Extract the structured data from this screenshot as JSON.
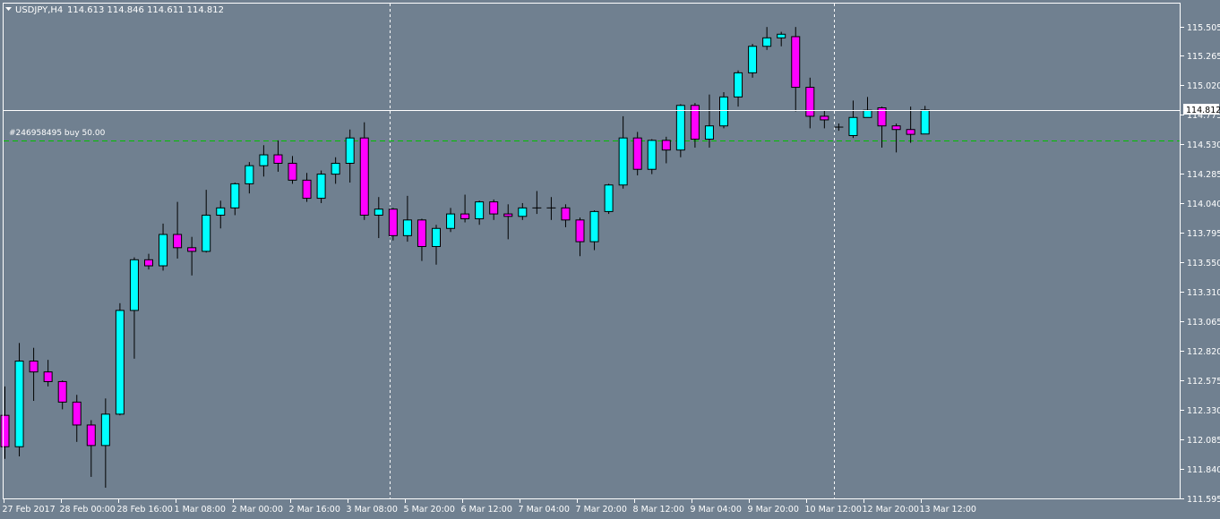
{
  "window": {
    "symbol": "USDJPY,H4",
    "ohlc_line": "114.613 114.846 114.611 114.812"
  },
  "price_axis": {
    "labels": [
      "115.505",
      "115.265",
      "115.020",
      "114.775",
      "114.530",
      "114.285",
      "114.040",
      "113.795",
      "113.550",
      "113.310",
      "113.065",
      "112.820",
      "112.575",
      "112.330",
      "112.085",
      "111.840",
      "111.595"
    ],
    "current_price_label": "114.812"
  },
  "time_axis": {
    "labels": [
      "27 Feb 2017",
      "28 Feb 00:00",
      "28 Feb 16:00",
      "1 Mar 08:00",
      "2 Mar 00:00",
      "2 Mar 16:00",
      "3 Mar 08:00",
      "5 Mar 20:00",
      "6 Mar 12:00",
      "7 Mar 04:00",
      "7 Mar 20:00",
      "8 Mar 12:00",
      "9 Mar 04:00",
      "9 Mar 20:00",
      "10 Mar 12:00",
      "12 Mar 20:00",
      "13 Mar 12:00"
    ]
  },
  "order": {
    "label": "#246958495 buy 50.00",
    "price": 114.56
  },
  "colors": {
    "background": "#708090",
    "bull": "#00FFFF",
    "bear": "#FF00FF",
    "wick": "#000000",
    "bid_line": "#FFFFFF",
    "order_line": "#00C000",
    "separator": "#FFFFFF",
    "axis_text": "#FFFFFF"
  },
  "chart_data": {
    "type": "candlestick",
    "symbol": "USDJPY",
    "timeframe": "H4",
    "ylim": [
      111.58,
      115.62
    ],
    "bid": 114.812,
    "period_separators": [
      "3 Mar 20:00",
      "10 Mar 12:00"
    ],
    "candles": [
      {
        "o": 112.28,
        "h": 112.52,
        "l": 111.92,
        "c": 112.02
      },
      {
        "o": 112.02,
        "h": 112.88,
        "l": 111.94,
        "c": 112.73
      },
      {
        "o": 112.73,
        "h": 112.84,
        "l": 112.4,
        "c": 112.64
      },
      {
        "o": 112.64,
        "h": 112.74,
        "l": 112.52,
        "c": 112.56
      },
      {
        "o": 112.56,
        "h": 112.57,
        "l": 112.33,
        "c": 112.39
      },
      {
        "o": 112.39,
        "h": 112.45,
        "l": 112.06,
        "c": 112.2
      },
      {
        "o": 112.2,
        "h": 112.24,
        "l": 111.77,
        "c": 112.03
      },
      {
        "o": 112.03,
        "h": 112.42,
        "l": 111.68,
        "c": 112.29
      },
      {
        "o": 112.29,
        "h": 113.21,
        "l": 112.28,
        "c": 113.15
      },
      {
        "o": 113.15,
        "h": 113.59,
        "l": 112.75,
        "c": 113.57
      },
      {
        "o": 113.57,
        "h": 113.62,
        "l": 113.49,
        "c": 113.52
      },
      {
        "o": 113.52,
        "h": 113.87,
        "l": 113.48,
        "c": 113.78
      },
      {
        "o": 113.78,
        "h": 114.05,
        "l": 113.58,
        "c": 113.67
      },
      {
        "o": 113.67,
        "h": 113.76,
        "l": 113.44,
        "c": 113.64
      },
      {
        "o": 113.64,
        "h": 114.15,
        "l": 113.63,
        "c": 113.94
      },
      {
        "o": 113.94,
        "h": 114.06,
        "l": 113.83,
        "c": 114.0
      },
      {
        "o": 114.0,
        "h": 114.21,
        "l": 113.94,
        "c": 114.2
      },
      {
        "o": 114.2,
        "h": 114.38,
        "l": 114.12,
        "c": 114.35
      },
      {
        "o": 114.35,
        "h": 114.52,
        "l": 114.26,
        "c": 114.44
      },
      {
        "o": 114.44,
        "h": 114.56,
        "l": 114.3,
        "c": 114.37
      },
      {
        "o": 114.37,
        "h": 114.43,
        "l": 114.2,
        "c": 114.23
      },
      {
        "o": 114.23,
        "h": 114.29,
        "l": 114.05,
        "c": 114.08
      },
      {
        "o": 114.08,
        "h": 114.31,
        "l": 114.04,
        "c": 114.28
      },
      {
        "o": 114.28,
        "h": 114.42,
        "l": 114.2,
        "c": 114.37
      },
      {
        "o": 114.37,
        "h": 114.65,
        "l": 114.21,
        "c": 114.58
      },
      {
        "o": 114.58,
        "h": 114.71,
        "l": 113.9,
        "c": 113.94
      },
      {
        "o": 113.94,
        "h": 114.09,
        "l": 113.75,
        "c": 113.99
      },
      {
        "o": 113.99,
        "h": 114.0,
        "l": 113.73,
        "c": 113.77
      },
      {
        "o": 113.77,
        "h": 114.1,
        "l": 113.72,
        "c": 113.9
      },
      {
        "o": 113.9,
        "h": 113.91,
        "l": 113.56,
        "c": 113.68
      },
      {
        "o": 113.68,
        "h": 113.86,
        "l": 113.53,
        "c": 113.83
      },
      {
        "o": 113.83,
        "h": 114.0,
        "l": 113.8,
        "c": 113.95
      },
      {
        "o": 113.95,
        "h": 114.11,
        "l": 113.88,
        "c": 113.91
      },
      {
        "o": 113.91,
        "h": 114.06,
        "l": 113.86,
        "c": 114.05
      },
      {
        "o": 114.05,
        "h": 114.07,
        "l": 113.9,
        "c": 113.95
      },
      {
        "o": 113.95,
        "h": 114.03,
        "l": 113.74,
        "c": 113.93
      },
      {
        "o": 113.93,
        "h": 114.04,
        "l": 113.9,
        "c": 114.0
      },
      {
        "o": 114.0,
        "h": 114.14,
        "l": 113.95,
        "c": 114.0
      },
      {
        "o": 114.0,
        "h": 114.09,
        "l": 113.9,
        "c": 114.0
      },
      {
        "o": 114.0,
        "h": 114.03,
        "l": 113.84,
        "c": 113.9
      },
      {
        "o": 113.9,
        "h": 113.92,
        "l": 113.6,
        "c": 113.72
      },
      {
        "o": 113.72,
        "h": 113.98,
        "l": 113.65,
        "c": 113.97
      },
      {
        "o": 113.97,
        "h": 114.2,
        "l": 113.95,
        "c": 114.19
      },
      {
        "o": 114.19,
        "h": 114.76,
        "l": 114.16,
        "c": 114.58
      },
      {
        "o": 114.58,
        "h": 114.63,
        "l": 114.27,
        "c": 114.32
      },
      {
        "o": 114.32,
        "h": 114.57,
        "l": 114.28,
        "c": 114.56
      },
      {
        "o": 114.56,
        "h": 114.59,
        "l": 114.37,
        "c": 114.48
      },
      {
        "o": 114.48,
        "h": 114.86,
        "l": 114.42,
        "c": 114.85
      },
      {
        "o": 114.85,
        "h": 114.87,
        "l": 114.5,
        "c": 114.57
      },
      {
        "o": 114.57,
        "h": 114.94,
        "l": 114.5,
        "c": 114.68
      },
      {
        "o": 114.68,
        "h": 114.96,
        "l": 114.66,
        "c": 114.92
      },
      {
        "o": 114.92,
        "h": 115.14,
        "l": 114.84,
        "c": 115.12
      },
      {
        "o": 115.12,
        "h": 115.36,
        "l": 115.08,
        "c": 115.34
      },
      {
        "o": 115.34,
        "h": 115.5,
        "l": 115.31,
        "c": 115.41
      },
      {
        "o": 115.41,
        "h": 115.46,
        "l": 115.34,
        "c": 115.44
      },
      {
        "o": 115.42,
        "h": 115.5,
        "l": 114.8,
        "c": 115.0
      },
      {
        "o": 115.0,
        "h": 115.08,
        "l": 114.66,
        "c": 114.76
      },
      {
        "o": 114.76,
        "h": 114.81,
        "l": 114.66,
        "c": 114.73
      },
      {
        "o": 114.67,
        "h": 114.7,
        "l": 114.64,
        "c": 114.67
      },
      {
        "o": 114.6,
        "h": 114.89,
        "l": 114.58,
        "c": 114.75
      },
      {
        "o": 114.75,
        "h": 114.92,
        "l": 114.75,
        "c": 114.81
      },
      {
        "o": 114.83,
        "h": 114.84,
        "l": 114.5,
        "c": 114.68
      },
      {
        "o": 114.68,
        "h": 114.7,
        "l": 114.46,
        "c": 114.65
      },
      {
        "o": 114.65,
        "h": 114.84,
        "l": 114.54,
        "c": 114.61
      },
      {
        "o": 114.613,
        "h": 114.846,
        "l": 114.611,
        "c": 114.812
      }
    ]
  }
}
